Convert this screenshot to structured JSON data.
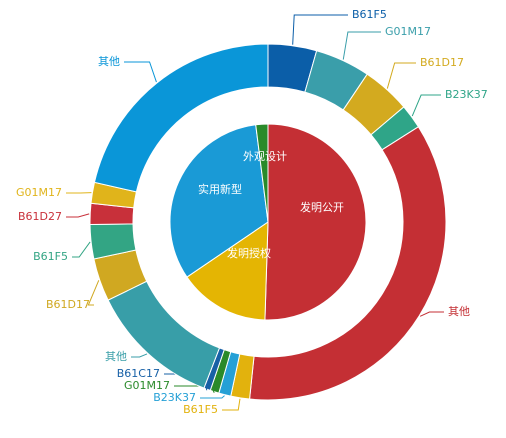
{
  "chart_data": {
    "type": "pie",
    "rings": [
      {
        "categories": [
          "发明公开",
          "发明授权",
          "实用新型",
          "外观设计"
        ],
        "values": [
          50.5,
          15,
          32.5,
          2
        ],
        "colors": [
          "#c42f34",
          "#e4b503",
          "#1a9ad6",
          "#2a8a2a"
        ]
      },
      {
        "categories": [
          "B61F5",
          "G01M17",
          "B61D17",
          "B23K37",
          "其他",
          "B61F5",
          "B23K37",
          "G01M17",
          "B61C17",
          "其他",
          "B61D17",
          "B61F5",
          "B61D27",
          "G01M17",
          "其他"
        ],
        "values": [
          4.4,
          5,
          4.4,
          2.2,
          35.6,
          1.7,
          1.1,
          0.8,
          0.6,
          11.9,
          3.9,
          3.1,
          1.9,
          1.9,
          21.4
        ],
        "colors": [
          "#0b5ea8",
          "#3a9eaa",
          "#d3aa1f",
          "#2fa588",
          "#c42f34",
          "#e2b20d",
          "#25a0d6",
          "#2a8a2a",
          "#1760a6",
          "#389ea8",
          "#d0a821",
          "#33a584",
          "#c8303a",
          "#e0b41b",
          "#0a96d8"
        ]
      }
    ]
  }
}
